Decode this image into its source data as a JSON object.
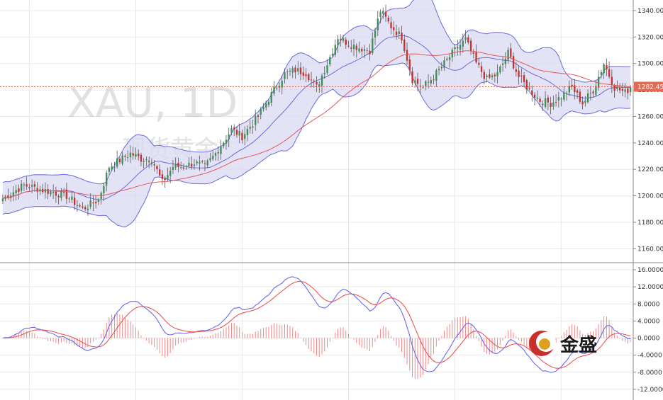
{
  "watermark": {
    "symbol": "XAU, 1D",
    "name": "现货黄金"
  },
  "logo": {
    "text": "金盛"
  },
  "colors": {
    "bull": "#3c8f54",
    "bear": "#c9302c",
    "band_fill": "#d9d9f2",
    "band_line": "#6b6be0",
    "ma_red": "#e05a5a",
    "macd_blue": "#6a6af0",
    "signal_red": "#ee5555",
    "hist_red": "#ee8888",
    "price_tag": "#e06b55",
    "grid": "#e9e9e9"
  },
  "chart_data": [
    {
      "type": "candlestick",
      "title": "",
      "ylim": [
        1150,
        1348
      ],
      "y_ticks": [
        "1340.00",
        "1320.00",
        "1300.00",
        "1280.00",
        "1260.00",
        "1240.00",
        "1220.00",
        "1200.00",
        "1180.00",
        "1160.00"
      ],
      "last_price": "1282.45",
      "indicators": [
        "Bollinger Bands",
        "Moving Average"
      ],
      "close_anchors": [
        [
          0,
          1198
        ],
        [
          8,
          1208
        ],
        [
          16,
          1204
        ],
        [
          24,
          1200
        ],
        [
          30,
          1190
        ],
        [
          36,
          1197
        ],
        [
          40,
          1222
        ],
        [
          48,
          1232
        ],
        [
          52,
          1228
        ],
        [
          56,
          1228
        ],
        [
          60,
          1210
        ],
        [
          64,
          1222
        ],
        [
          68,
          1222
        ],
        [
          72,
          1225
        ],
        [
          76,
          1222
        ],
        [
          80,
          1232
        ],
        [
          86,
          1250
        ],
        [
          90,
          1245
        ],
        [
          96,
          1260
        ],
        [
          102,
          1280
        ],
        [
          106,
          1292
        ],
        [
          110,
          1295
        ],
        [
          114,
          1293
        ],
        [
          118,
          1282
        ],
        [
          122,
          1300
        ],
        [
          126,
          1320
        ],
        [
          130,
          1315
        ],
        [
          134,
          1312
        ],
        [
          138,
          1310
        ],
        [
          142,
          1340
        ],
        [
          146,
          1328
        ],
        [
          150,
          1320
        ],
        [
          154,
          1288
        ],
        [
          158,
          1282
        ],
        [
          162,
          1290
        ],
        [
          166,
          1300
        ],
        [
          170,
          1310
        ],
        [
          174,
          1318
        ],
        [
          178,
          1300
        ],
        [
          182,
          1288
        ],
        [
          186,
          1292
        ],
        [
          190,
          1308
        ],
        [
          194,
          1290
        ],
        [
          198,
          1280
        ],
        [
          202,
          1272
        ],
        [
          206,
          1270
        ],
        [
          210,
          1275
        ],
        [
          214,
          1282
        ],
        [
          218,
          1270
        ],
        [
          222,
          1280
        ],
        [
          226,
          1300
        ],
        [
          230,
          1282
        ],
        [
          234,
          1278
        ],
        [
          236,
          1282
        ]
      ],
      "macd_ylim": [
        -14.5,
        17.5
      ],
      "macd_ticks": [
        "16.0000",
        "12.0000",
        "8.0000",
        "4.0000",
        "0.0000",
        "-4.0000",
        "-8.0000",
        "-12.0000"
      ]
    }
  ]
}
